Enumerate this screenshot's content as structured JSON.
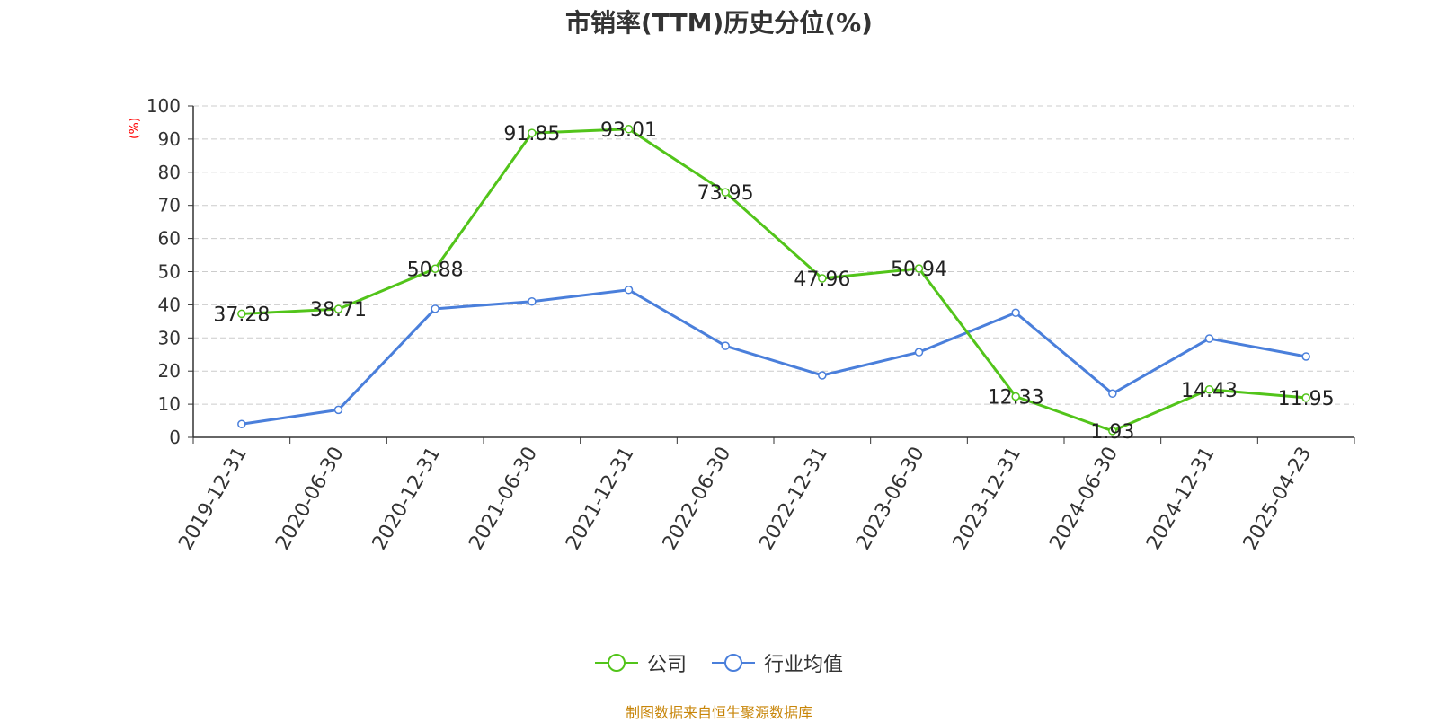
{
  "chart_data": {
    "type": "line",
    "title": "市销率(TTM)历史分位(%)",
    "ylabel": "(%)",
    "xlabel": "",
    "categories": [
      "2019-12-31",
      "2020-06-30",
      "2020-12-31",
      "2021-06-30",
      "2021-12-31",
      "2022-06-30",
      "2022-12-31",
      "2023-06-30",
      "2023-12-31",
      "2024-06-30",
      "2024-12-31",
      "2025-04-23"
    ],
    "ylim": [
      0,
      100
    ],
    "yticks": [
      0,
      10,
      20,
      30,
      40,
      50,
      60,
      70,
      80,
      90,
      100
    ],
    "grid": true,
    "legend_position": "bottom-center",
    "series": [
      {
        "name": "公司",
        "color": "#52c41a",
        "values": [
          37.28,
          38.71,
          50.88,
          91.85,
          93.01,
          73.95,
          47.96,
          50.94,
          12.33,
          1.93,
          14.43,
          11.95
        ],
        "labels": [
          "37.28",
          "38.71",
          "50.88",
          "91.85",
          "93.01",
          "73.95",
          "47.96",
          "50.94",
          "12.33",
          "1.93",
          "14.43",
          "11.95"
        ]
      },
      {
        "name": "行业均值",
        "color": "#4a7fdb",
        "values": [
          4.0,
          8.3,
          38.8,
          41.0,
          44.5,
          27.6,
          18.7,
          25.7,
          37.6,
          13.2,
          29.8,
          24.4
        ]
      }
    ]
  },
  "source_note": "制图数据来自恒生聚源数据库"
}
